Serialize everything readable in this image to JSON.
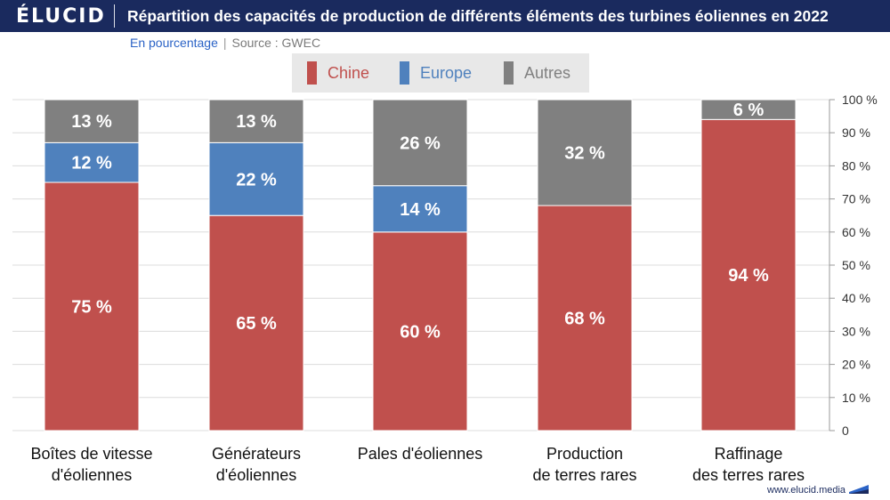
{
  "header": {
    "logo": "ÉLUCID",
    "title": "Répartition des capacités de production de différents éléments des turbines éoliennes en 2022"
  },
  "subtitle": {
    "unit": "En pourcentage",
    "separator": "|",
    "source": "Source : GWEC"
  },
  "footer": {
    "url": "www.elucid.media"
  },
  "colors": {
    "header_bg": "#1a2a5e",
    "chine": "#c0504d",
    "europe": "#4f81bd",
    "autres": "#808080"
  },
  "chart_data": {
    "type": "bar",
    "stacked": true,
    "categories": [
      [
        "Boîtes de vitesse",
        "d'éoliennes"
      ],
      [
        "Générateurs",
        "d'éoliennes"
      ],
      [
        "Pales d'éoliennes"
      ],
      [
        "Production",
        "de terres rares"
      ],
      [
        "Raffinage",
        "des terres rares"
      ]
    ],
    "series": [
      {
        "name": "Chine",
        "color": "#c0504d",
        "values": [
          75,
          65,
          60,
          68,
          94
        ],
        "labels": [
          "75 %",
          "65 %",
          "60 %",
          "68 %",
          "94 %"
        ]
      },
      {
        "name": "Europe",
        "color": "#4f81bd",
        "values": [
          12,
          22,
          14,
          0,
          0
        ],
        "labels": [
          "12 %",
          "22 %",
          "14 %",
          "",
          ""
        ]
      },
      {
        "name": "Autres",
        "color": "#808080",
        "values": [
          13,
          13,
          26,
          32,
          6
        ],
        "labels": [
          "13 %",
          "13 %",
          "26 %",
          "32 %",
          "6 %"
        ]
      }
    ],
    "yaxis": {
      "position": "right",
      "ticks": [
        "0",
        "10 %",
        "20 %",
        "30 %",
        "40 %",
        "50 %",
        "60 %",
        "70 %",
        "80 %",
        "90 %",
        "100 %"
      ]
    },
    "ylim": [
      0,
      100
    ],
    "grid": true,
    "legend_position": "top-center"
  }
}
